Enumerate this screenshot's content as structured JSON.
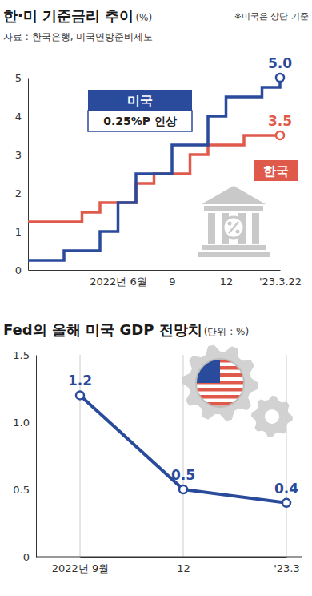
{
  "chart_data": [
    {
      "type": "line",
      "title": "한·미 기준금리 추이",
      "unit": "(%)",
      "note": "※미국은 상단 기준",
      "source": "자료 : 한국은행, 미국연방준비제도",
      "annotation": "0.25%P 인상",
      "categories": [
        null,
        null,
        null,
        null,
        null,
        "2022년 6월",
        null,
        null,
        "9",
        null,
        null,
        "12",
        null,
        null,
        "'23.3.22"
      ],
      "series": [
        {
          "name": "미국",
          "color": "#2a4a9b",
          "values": [
            0.25,
            0.25,
            0.5,
            0.5,
            1.0,
            1.75,
            2.5,
            2.5,
            3.25,
            3.25,
            4.0,
            4.5,
            4.5,
            4.75,
            5.0
          ],
          "value_labels": [
            null,
            null,
            null,
            null,
            null,
            null,
            null,
            null,
            null,
            null,
            null,
            null,
            null,
            null,
            "5.0"
          ],
          "line_style": "step",
          "marker": "end"
        },
        {
          "name": "한국",
          "color": "#e05a4c",
          "values": [
            1.25,
            1.25,
            1.25,
            1.5,
            1.75,
            1.75,
            2.25,
            2.5,
            2.5,
            3.0,
            3.25,
            3.25,
            3.5,
            3.5,
            3.5
          ],
          "value_labels": [
            null,
            null,
            null,
            null,
            null,
            null,
            null,
            null,
            null,
            null,
            null,
            null,
            null,
            null,
            "3.5"
          ],
          "line_style": "step",
          "marker": "end"
        }
      ],
      "ylim": [
        0,
        5
      ],
      "yticks": [
        0,
        1,
        2,
        3,
        4,
        5
      ],
      "grid": false
    },
    {
      "type": "line",
      "title": "Fed의 올해 미국 GDP 전망치",
      "unit": "(단위 : %)",
      "categories": [
        "2022년 9월",
        "12",
        "'23.3"
      ],
      "values": [
        1.2,
        0.5,
        0.4
      ],
      "color": "#2a4a9b",
      "ylim": [
        0,
        1.5
      ],
      "yticks": [
        0,
        0.5,
        {
          "value": 1,
          "label": "1.0"
        },
        1.5
      ],
      "data_labels": true,
      "marker": "circle",
      "grid": "x"
    }
  ]
}
